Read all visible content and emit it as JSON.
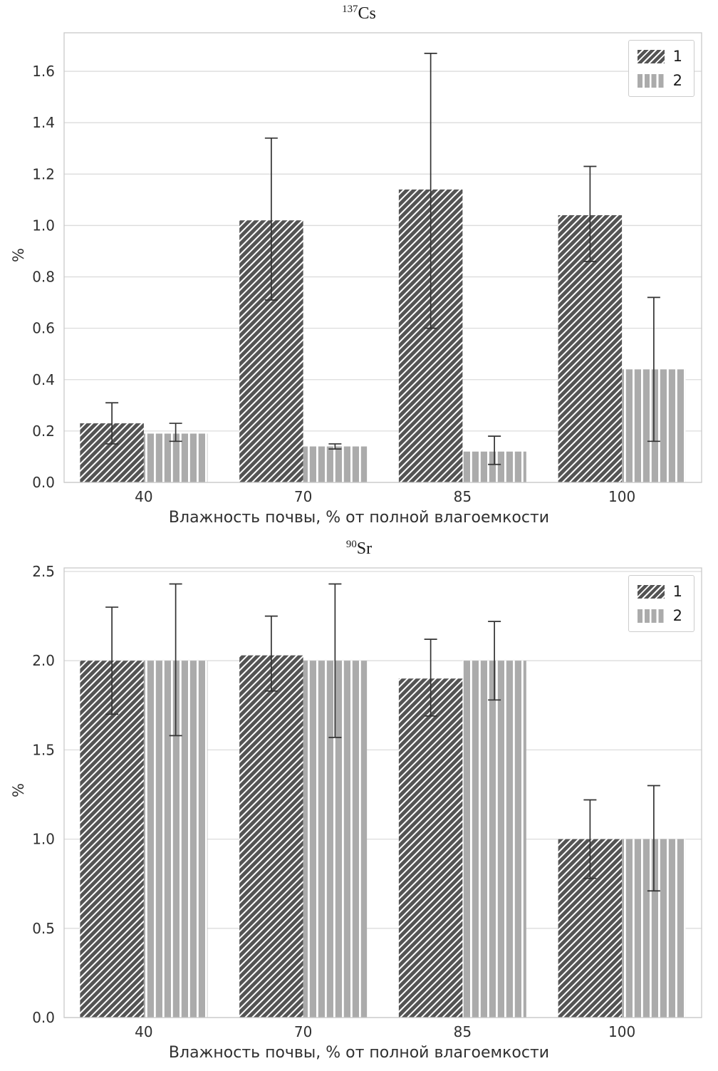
{
  "figure": {
    "background": "#ffffff",
    "grid_color": "#dcdcdc",
    "spine_color": "#c9c9c9",
    "text_color": "#303030",
    "errorbar_color": "#333333"
  },
  "chart_data": [
    {
      "type": "bar",
      "title": "137Cs",
      "title_sup": "137",
      "title_main": "Cs",
      "xlabel": "Влажность почвы, % от полной влагоемкости",
      "ylabel": "%",
      "categories": [
        "40",
        "70",
        "85",
        "100"
      ],
      "ylim": [
        0,
        1.75
      ],
      "yticks": [
        0.0,
        0.2,
        0.4,
        0.6,
        0.8,
        1.0,
        1.2,
        1.4,
        1.6
      ],
      "ytick_labels": [
        "0.0",
        "0.2",
        "0.4",
        "0.6",
        "0.8",
        "1.0",
        "1.2",
        "1.4",
        "1.6"
      ],
      "grid": true,
      "legend": {
        "position": "upper right",
        "entries": [
          "1",
          "2"
        ]
      },
      "series": [
        {
          "name": "1",
          "color": "#545454",
          "hatch": "diagonal",
          "hatch_color": "#ffffff",
          "values": [
            0.23,
            1.02,
            1.14,
            1.04
          ],
          "err_low": [
            0.15,
            0.71,
            0.6,
            0.86
          ],
          "err_high": [
            0.31,
            1.34,
            1.67,
            1.23
          ]
        },
        {
          "name": "2",
          "color": "#ababab",
          "hatch": "vertical",
          "hatch_color": "#ffffff",
          "values": [
            0.19,
            0.14,
            0.12,
            0.44
          ],
          "err_low": [
            0.16,
            0.13,
            0.07,
            0.16
          ],
          "err_high": [
            0.23,
            0.15,
            0.18,
            0.72
          ]
        }
      ]
    },
    {
      "type": "bar",
      "title": "90Sr",
      "title_sup": "90",
      "title_main": "Sr",
      "xlabel": "Влажность почвы, % от полной влагоемкости",
      "ylabel": "%",
      "categories": [
        "40",
        "70",
        "85",
        "100"
      ],
      "ylim": [
        0,
        2.52
      ],
      "yticks": [
        0.0,
        0.5,
        1.0,
        1.5,
        2.0,
        2.5
      ],
      "ytick_labels": [
        "0.0",
        "0.5",
        "1.0",
        "1.5",
        "2.0",
        "2.5"
      ],
      "grid": true,
      "legend": {
        "position": "upper right",
        "entries": [
          "1",
          "2"
        ]
      },
      "series": [
        {
          "name": "1",
          "color": "#545454",
          "hatch": "diagonal",
          "hatch_color": "#ffffff",
          "values": [
            2.0,
            2.03,
            1.9,
            1.0
          ],
          "err_low": [
            1.7,
            1.83,
            1.69,
            0.78
          ],
          "err_high": [
            2.3,
            2.25,
            2.12,
            1.22
          ]
        },
        {
          "name": "2",
          "color": "#ababab",
          "hatch": "vertical",
          "hatch_color": "#ffffff",
          "values": [
            2.0,
            2.0,
            2.0,
            1.0
          ],
          "err_low": [
            1.58,
            1.57,
            1.78,
            0.71
          ],
          "err_high": [
            2.43,
            2.43,
            2.22,
            1.3
          ]
        }
      ]
    }
  ]
}
